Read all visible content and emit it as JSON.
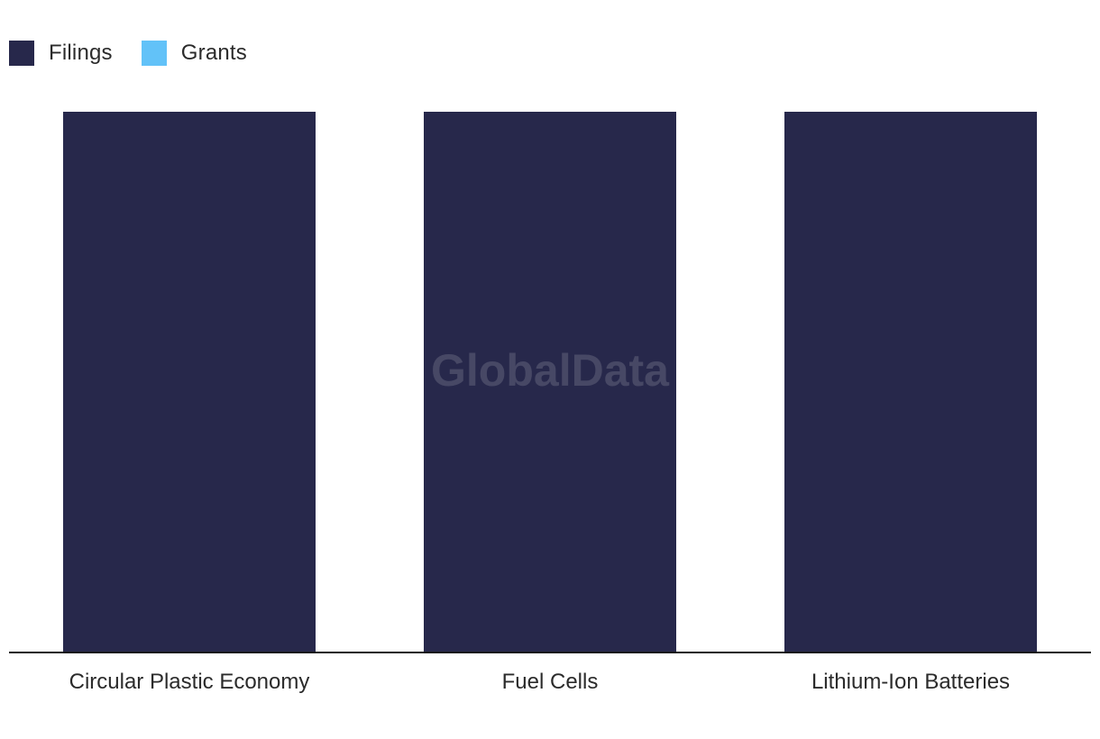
{
  "legend": {
    "items": [
      {
        "label": "Filings",
        "color": "#27284b"
      },
      {
        "label": "Grants",
        "color": "#62c2f8"
      }
    ]
  },
  "watermark": "GlobalData",
  "chart_data": {
    "type": "bar",
    "categories": [
      "Circular Plastic Economy",
      "Fuel Cells",
      "Lithium-Ion Batteries"
    ],
    "series": [
      {
        "name": "Filings",
        "color": "#27284b",
        "values": [
          100,
          100,
          100
        ]
      },
      {
        "name": "Grants",
        "color": "#62c2f8",
        "values": [
          0,
          0,
          0
        ]
      }
    ],
    "title": "",
    "xlabel": "",
    "ylabel": "",
    "ylim": [
      0,
      100
    ],
    "grid": false,
    "legend_position": "top-left"
  }
}
